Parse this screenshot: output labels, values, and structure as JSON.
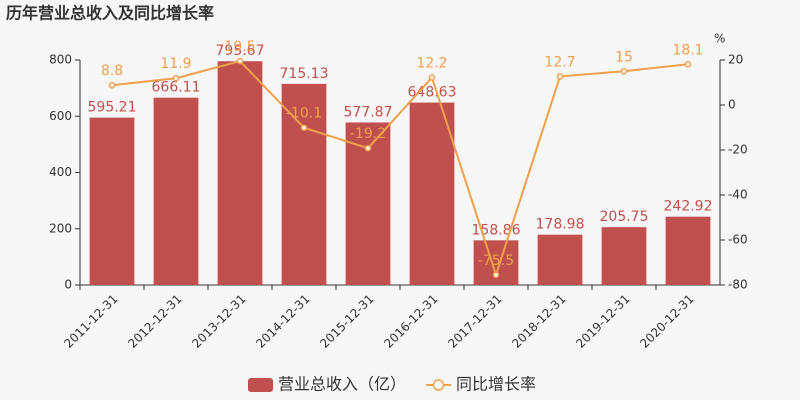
{
  "chart_data": {
    "type": "bar",
    "title": "历年营业总收入及同比增长率",
    "categories": [
      "2011-12-31",
      "2012-12-31",
      "2013-12-31",
      "2014-12-31",
      "2015-12-31",
      "2016-12-31",
      "2017-12-31",
      "2018-12-31",
      "2019-12-31",
      "2020-12-31"
    ],
    "series": [
      {
        "name": "营业总收入（亿）",
        "type": "bar",
        "color": "#c0504e",
        "values": [
          595.21,
          666.11,
          795.67,
          715.13,
          577.87,
          648.63,
          158.86,
          178.98,
          205.75,
          242.92
        ]
      },
      {
        "name": "同比增长率",
        "type": "line",
        "axis": "y2",
        "color": "#f0a04b",
        "values": [
          8.8,
          11.9,
          19.5,
          -10.1,
          -19.2,
          12.2,
          -75.5,
          12.7,
          15,
          18.1
        ]
      }
    ],
    "ylim": [
      0,
      800
    ],
    "yticks": [
      0,
      200,
      400,
      600,
      800
    ],
    "y2lim": [
      -80,
      20
    ],
    "y2ticks": [
      -80,
      -60,
      -40,
      -20,
      0,
      20
    ],
    "y2label": "%",
    "legend": "bottom"
  }
}
